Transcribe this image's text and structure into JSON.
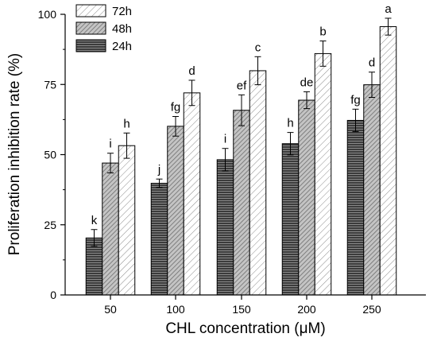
{
  "chart_data": {
    "type": "bar",
    "title": "",
    "xlabel": "CHL concentration (μM)",
    "ylabel": "Proliferation inhibition rate (%)",
    "categories": [
      "50",
      "100",
      "150",
      "200",
      "250"
    ],
    "ylim": [
      0,
      100
    ],
    "yticks": [
      "0",
      "25",
      "50",
      "75",
      "100"
    ],
    "grid": false,
    "legend_position": "top-left",
    "series": [
      {
        "name": "24h",
        "fill": "dark-horizontal-lines",
        "values": [
          20.3,
          39.8,
          48.2,
          53.9,
          62.2
        ],
        "errors": [
          3.0,
          1.5,
          4.0,
          4.0,
          4.0
        ],
        "letters": [
          "k",
          "j",
          "i",
          "h",
          "fg"
        ]
      },
      {
        "name": "48h",
        "fill": "grey-diagonal-hatch",
        "values": [
          47.0,
          60.1,
          65.8,
          69.4,
          74.9
        ],
        "errors": [
          3.5,
          3.5,
          5.5,
          3.0,
          4.5
        ],
        "letters": [
          "i",
          "fg",
          "ef",
          "de",
          "d"
        ]
      },
      {
        "name": "72h",
        "fill": "light-diagonal-hatch",
        "values": [
          53.2,
          72.0,
          79.9,
          86.0,
          95.6
        ],
        "errors": [
          4.5,
          4.5,
          5.0,
          4.5,
          3.0
        ],
        "letters": [
          "h",
          "d",
          "c",
          "b",
          "a"
        ]
      }
    ]
  }
}
